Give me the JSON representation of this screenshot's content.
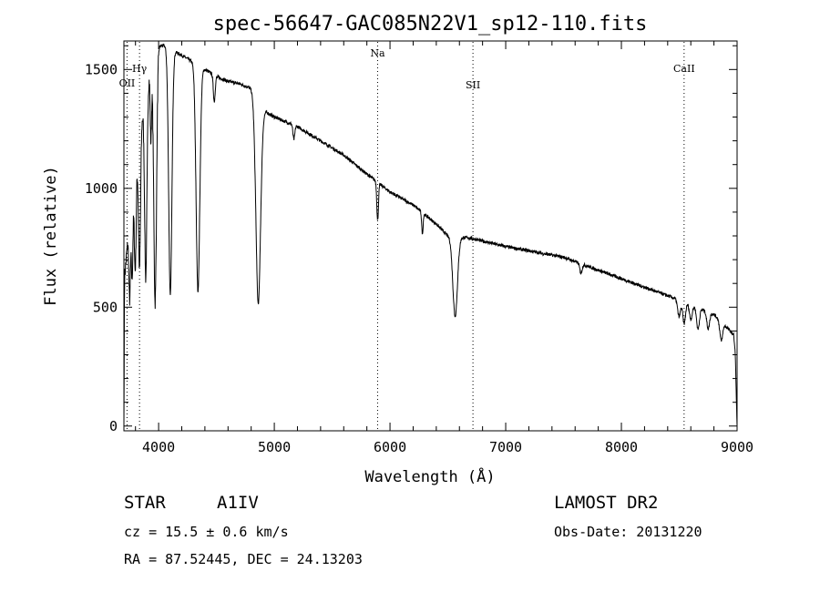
{
  "chart_data": {
    "type": "line",
    "title": "spec-56647-GAC085N22V1_sp12-110.fits",
    "xlabel": "Wavelength (Å)",
    "ylabel": "Flux (relative)",
    "xlim": [
      3700,
      9000
    ],
    "ylim": [
      -20,
      1620
    ],
    "x_ticks": [
      4000,
      5000,
      6000,
      7000,
      8000,
      9000
    ],
    "y_ticks": [
      0,
      500,
      1000,
      1500
    ],
    "x_minor_step": 200,
    "y_minor_step": 100,
    "lines": [
      {
        "name": "OII",
        "x": 3727
      },
      {
        "name": "Hγ",
        "x": 3835
      },
      {
        "name": "Na",
        "x": 5893
      },
      {
        "name": "SII",
        "x": 6717
      },
      {
        "name": "CaII",
        "x": 8542
      }
    ],
    "continuum": [
      [
        3700,
        0
      ],
      [
        3705,
        620
      ],
      [
        3730,
        760
      ],
      [
        3760,
        930
      ],
      [
        3790,
        1050
      ],
      [
        3820,
        1150
      ],
      [
        3850,
        1280
      ],
      [
        3880,
        1380
      ],
      [
        3920,
        1480
      ],
      [
        3960,
        1560
      ],
      [
        4000,
        1600
      ],
      [
        4050,
        1600
      ],
      [
        4100,
        1585
      ],
      [
        4200,
        1560
      ],
      [
        4300,
        1530
      ],
      [
        4400,
        1500
      ],
      [
        4500,
        1470
      ],
      [
        4600,
        1450
      ],
      [
        4700,
        1440
      ],
      [
        4800,
        1420
      ],
      [
        4900,
        1330
      ],
      [
        5000,
        1300
      ],
      [
        5200,
        1260
      ],
      [
        5400,
        1200
      ],
      [
        5600,
        1140
      ],
      [
        5800,
        1060
      ],
      [
        6000,
        985
      ],
      [
        6200,
        930
      ],
      [
        6400,
        850
      ],
      [
        6500,
        800
      ],
      [
        6700,
        790
      ],
      [
        7000,
        755
      ],
      [
        7500,
        710
      ],
      [
        8000,
        620
      ],
      [
        8500,
        530
      ],
      [
        8800,
        470
      ],
      [
        8970,
        385
      ],
      [
        8985,
        300
      ],
      [
        8992,
        150
      ],
      [
        9000,
        0
      ]
    ],
    "absorption": [
      {
        "x": 3750,
        "depth": 340,
        "width": 7
      },
      {
        "x": 3771,
        "depth": 350,
        "width": 7
      },
      {
        "x": 3798,
        "depth": 420,
        "width": 8
      },
      {
        "x": 3835,
        "depth": 550,
        "width": 9
      },
      {
        "x": 3889,
        "depth": 780,
        "width": 10
      },
      {
        "x": 3933,
        "depth": 300,
        "width": 6
      },
      {
        "x": 3970,
        "depth": 1050,
        "width": 12
      },
      {
        "x": 4101,
        "depth": 1030,
        "width": 14
      },
      {
        "x": 4340,
        "depth": 950,
        "width": 16
      },
      {
        "x": 4481,
        "depth": 110,
        "width": 8
      },
      {
        "x": 4861,
        "depth": 850,
        "width": 20
      },
      {
        "x": 5169,
        "depth": 60,
        "width": 8
      },
      {
        "x": 5893,
        "depth": 160,
        "width": 7
      },
      {
        "x": 6280,
        "depth": 90,
        "width": 6
      },
      {
        "x": 6563,
        "depth": 335,
        "width": 20
      },
      {
        "x": 7650,
        "depth": 40,
        "width": 10
      },
      {
        "x": 8498,
        "depth": 70,
        "width": 12
      },
      {
        "x": 8542,
        "depth": 90,
        "width": 12
      },
      {
        "x": 8600,
        "depth": 60,
        "width": 12
      },
      {
        "x": 8662,
        "depth": 90,
        "width": 12
      },
      {
        "x": 8750,
        "depth": 70,
        "width": 12
      },
      {
        "x": 8863,
        "depth": 80,
        "width": 12
      }
    ]
  },
  "info": {
    "object_class": "STAR",
    "subclass": "A1IV",
    "survey": "LAMOST DR2",
    "redshift": "cz = 15.5 ± 0.6 km/s",
    "obs_date": "Obs-Date: 20131220",
    "coords": "RA =  87.52445, DEC =  24.13203"
  }
}
